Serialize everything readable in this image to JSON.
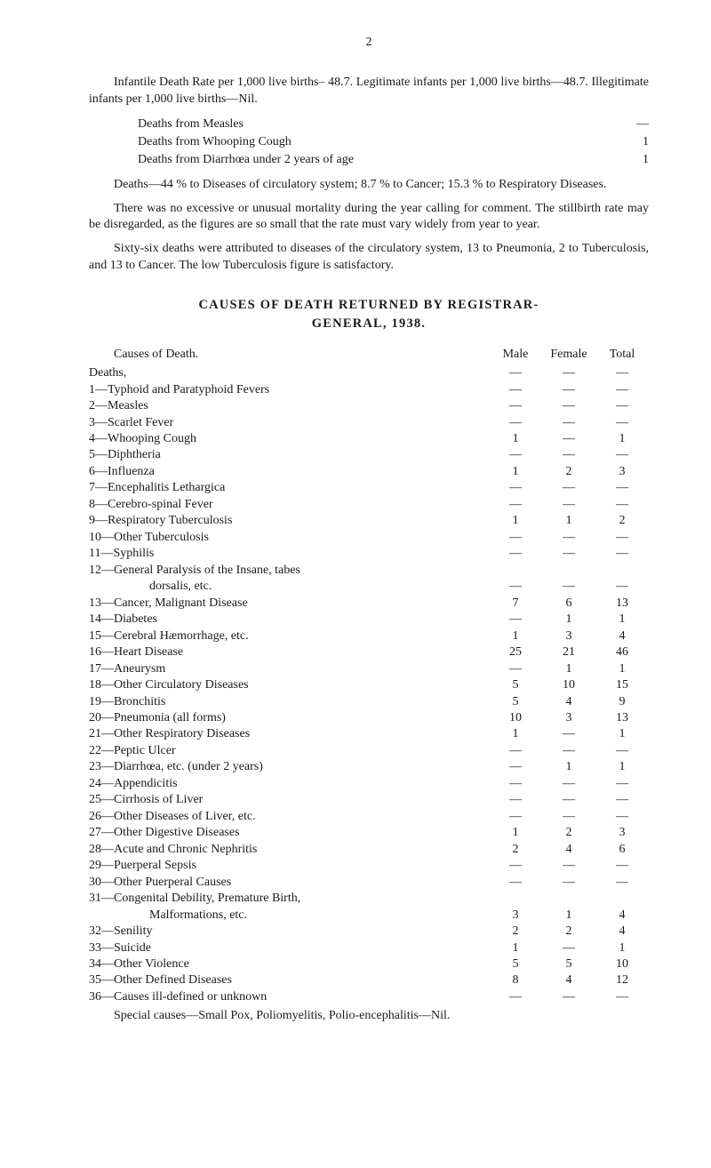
{
  "page_number": "2",
  "intro": {
    "p1": "Infantile Death Rate per 1,000 live births– 48.7. Legitimate infants per 1,000 live births—48.7. Illegitimate infants per 1,000 live births—Nil.",
    "sub_rows": [
      {
        "label": "Deaths from Measles",
        "val": "—"
      },
      {
        "label": "Deaths from Whooping Cough",
        "val": "1"
      },
      {
        "label": "Deaths from Diarrhœa under 2 years of age",
        "val": "1"
      }
    ],
    "p2": "Deaths—44 % to Diseases of circulatory system; 8.7 % to Cancer; 15.3 % to Respiratory Diseases.",
    "p3": "There was no excessive or unusual mortality during the year calling for comment. The stillbirth rate may be disregarded, as the figures are so small that the rate must vary widely from year to year.",
    "p4": "Sixty-six deaths were attributed to diseases of the circulatory system, 13 to Pneumonia, 2 to Tuberculosis, and 13 to Cancer. The low Tuberculosis figure is satisfactory."
  },
  "table": {
    "title": "CAUSES OF DEATH RETURNED BY REGISTRAR-",
    "subtitle": "GENERAL, 1938.",
    "head_cause": "Causes of Death.",
    "head_male": "Male",
    "head_female": "Female",
    "head_total": "Total",
    "deaths_label": "Deaths,",
    "rows": [
      {
        "label": "1—Typhoid and Paratyphoid Fevers",
        "m": "—",
        "f": "—",
        "t": "—"
      },
      {
        "label": "2—Measles",
        "m": "—",
        "f": "—",
        "t": "—"
      },
      {
        "label": "3—Scarlet Fever",
        "m": "—",
        "f": "—",
        "t": "—"
      },
      {
        "label": "4—Whooping Cough",
        "m": "1",
        "f": "—",
        "t": "1"
      },
      {
        "label": "5—Diphtheria",
        "m": "—",
        "f": "—",
        "t": "—"
      },
      {
        "label": "6—Influenza",
        "m": "1",
        "f": "2",
        "t": "3"
      },
      {
        "label": "7—Encephalitis Lethargica",
        "m": "—",
        "f": "—",
        "t": "—"
      },
      {
        "label": "8—Cerebro-spinal Fever",
        "m": "—",
        "f": "—",
        "t": "—"
      },
      {
        "label": "9—Respiratory Tuberculosis",
        "m": "1",
        "f": "1",
        "t": "2"
      },
      {
        "label": "10—Other Tuberculosis",
        "m": "—",
        "f": "—",
        "t": "—"
      },
      {
        "label": "11—Syphilis",
        "m": "—",
        "f": "—",
        "t": "—"
      },
      {
        "label": "12—General Paralysis of the Insane, tabes",
        "m": "",
        "f": "",
        "t": ""
      },
      {
        "label": "dorsalis, etc.",
        "indent": true,
        "m": "—",
        "f": "—",
        "t": "—"
      },
      {
        "label": "13—Cancer, Malignant Disease",
        "m": "7",
        "f": "6",
        "t": "13"
      },
      {
        "label": "14—Diabetes",
        "m": "—",
        "f": "1",
        "t": "1"
      },
      {
        "label": "15—Cerebral Hæmorrhage, etc.",
        "m": "1",
        "f": "3",
        "t": "4"
      },
      {
        "label": "16—Heart Disease",
        "m": "25",
        "f": "21",
        "t": "46"
      },
      {
        "label": "17—Aneurysm",
        "m": "—",
        "f": "1",
        "t": "1"
      },
      {
        "label": "18—Other Circulatory Diseases",
        "m": "5",
        "f": "10",
        "t": "15"
      },
      {
        "label": "19—Bronchitis",
        "m": "5",
        "f": "4",
        "t": "9"
      },
      {
        "label": "20—Pneumonia (all forms)",
        "m": "10",
        "f": "3",
        "t": "13"
      },
      {
        "label": "21—Other Respiratory Diseases",
        "m": "1",
        "f": "—",
        "t": "1"
      },
      {
        "label": "22—Peptic Ulcer",
        "m": "—",
        "f": "—",
        "t": "—"
      },
      {
        "label": "23—Diarrhœa, etc. (under 2 years)",
        "m": "—",
        "f": "1",
        "t": "1"
      },
      {
        "label": "24—Appendicitis",
        "m": "—",
        "f": "—",
        "t": "—"
      },
      {
        "label": "25—Cirrhosis of Liver",
        "m": "—",
        "f": "—",
        "t": "—"
      },
      {
        "label": "26—Other Diseases of Liver, etc.",
        "m": "—",
        "f": "—",
        "t": "—"
      },
      {
        "label": "27—Other Digestive Diseases",
        "m": "1",
        "f": "2",
        "t": "3"
      },
      {
        "label": "28—Acute and Chronic Nephritis",
        "m": "2",
        "f": "4",
        "t": "6"
      },
      {
        "label": "29—Puerperal Sepsis",
        "m": "—",
        "f": "—",
        "t": "—"
      },
      {
        "label": "30—Other Puerperal Causes",
        "m": "—",
        "f": "—",
        "t": "—"
      },
      {
        "label": "31—Congenital Debility, Premature Birth,",
        "m": "",
        "f": "",
        "t": ""
      },
      {
        "label": "Malformations, etc.",
        "indent": true,
        "m": "3",
        "f": "1",
        "t": "4"
      },
      {
        "label": "32—Senility",
        "m": "2",
        "f": "2",
        "t": "4"
      },
      {
        "label": "33—Suicide",
        "m": "1",
        "f": "—",
        "t": "1"
      },
      {
        "label": "34—Other Violence",
        "m": "5",
        "f": "5",
        "t": "10"
      },
      {
        "label": "35—Other Defined Diseases",
        "m": "8",
        "f": "4",
        "t": "12"
      },
      {
        "label": "36—Causes ill-defined or unknown",
        "m": "—",
        "f": "—",
        "t": "—"
      }
    ],
    "footnote": "Special causes—Small Pox, Poliomyelitis, Polio-encephalitis—Nil."
  }
}
